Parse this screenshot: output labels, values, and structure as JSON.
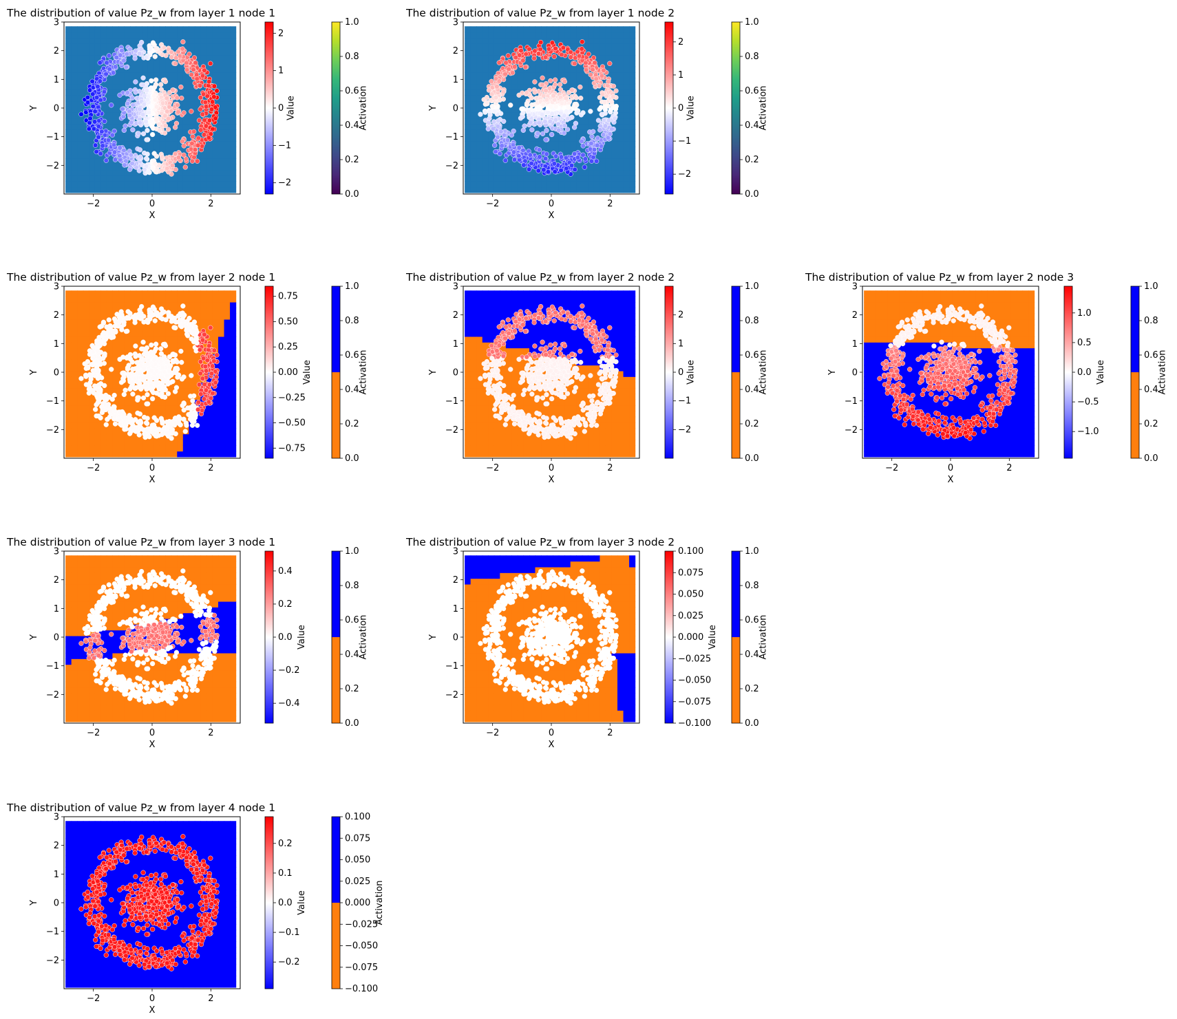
{
  "figure": {
    "background": "#ffffff",
    "colors": {
      "scatter_low": "#0000ff",
      "scatter_mid": "#ffffff",
      "scatter_high": "#ff0000",
      "region_orange": "#ff7f0e",
      "region_blue": "#0000ff",
      "region_steel": "#1f77b4"
    }
  },
  "chart_data": [
    {
      "type": "scatter",
      "title": "The distribution of value Pz_w from layer 1 node 1",
      "xlabel": "X",
      "ylabel": "Y",
      "xlim": [
        -3,
        3
      ],
      "ylim": [
        -3,
        3
      ],
      "xticks": [
        "−2",
        "0",
        "2"
      ],
      "yticks": [
        "−2",
        "−1",
        "0",
        "1",
        "2",
        "3"
      ],
      "background_region": "uniform steel-blue activation grid",
      "scatter_value": "rises left to right",
      "value_colorbar": {
        "label": "Value",
        "range": [
          -2.3,
          2.3
        ],
        "ticks": [
          "−2",
          "−1",
          "0",
          "1",
          "2"
        ]
      },
      "activation_colorbar": {
        "label": "Activation",
        "colormap": "viridis",
        "range": [
          0,
          1
        ],
        "ticks": [
          "0.0",
          "0.2",
          "0.4",
          "0.6",
          "0.8",
          "1.0"
        ]
      }
    },
    {
      "type": "scatter",
      "title": "The distribution of value Pz_w from layer 1 node 2",
      "xlabel": "X",
      "ylabel": "Y",
      "xlim": [
        -3,
        3
      ],
      "ylim": [
        -3,
        3
      ],
      "xticks": [
        "−2",
        "0",
        "2"
      ],
      "yticks": [
        "−2",
        "−1",
        "0",
        "1",
        "2",
        "3"
      ],
      "background_region": "uniform steel-blue activation grid",
      "scatter_value": "rises bottom to top",
      "value_colorbar": {
        "label": "Value",
        "range": [
          -2.6,
          2.6
        ],
        "ticks": [
          "−2",
          "−1",
          "0",
          "1",
          "2"
        ]
      },
      "activation_colorbar": {
        "label": "Activation",
        "colormap": "viridis",
        "range": [
          0,
          1
        ],
        "ticks": [
          "0.0",
          "0.2",
          "0.4",
          "0.6",
          "0.8",
          "1.0"
        ]
      }
    },
    {
      "type": "scatter",
      "title": "The distribution of value Pz_w from layer 2 node 1",
      "xlabel": "X",
      "ylabel": "Y",
      "xlim": [
        -3,
        3
      ],
      "ylim": [
        -3,
        3
      ],
      "xticks": [
        "−2",
        "0",
        "2"
      ],
      "yticks": [
        "−2",
        "−1",
        "0",
        "1",
        "2",
        "3"
      ],
      "background_region": "orange left, blue strip on the right (x > ~2)",
      "scatter_value": "mostly white, red points near the right boundary",
      "value_colorbar": {
        "label": "Value",
        "range": [
          -0.85,
          0.85
        ],
        "ticks": [
          "−0.75",
          "−0.50",
          "−0.25",
          "0.00",
          "0.25",
          "0.50",
          "0.75"
        ]
      },
      "activation_colorbar": {
        "label": "Activation",
        "colormap": "binary orange/blue",
        "range": [
          0,
          1
        ],
        "ticks": [
          "0.0",
          "0.2",
          "0.4",
          "0.6",
          "0.8",
          "1.0"
        ]
      }
    },
    {
      "type": "scatter",
      "title": "The distribution of value Pz_w from layer 2 node 2",
      "xlabel": "X",
      "ylabel": "Y",
      "xlim": [
        -3,
        3
      ],
      "ylim": [
        -3,
        3
      ],
      "xticks": [
        "−2",
        "0",
        "2"
      ],
      "yticks": [
        "−2",
        "−1",
        "0",
        "1",
        "2",
        "3"
      ],
      "background_region": "blue top half, orange bottom half",
      "scatter_value": "red in upper part, white below",
      "value_colorbar": {
        "label": "Value",
        "range": [
          -3,
          3
        ],
        "ticks": [
          "−2",
          "−1",
          "0",
          "1",
          "2"
        ]
      },
      "activation_colorbar": {
        "label": "Activation",
        "colormap": "binary orange/blue",
        "range": [
          0,
          1
        ],
        "ticks": [
          "0.0",
          "0.2",
          "0.4",
          "0.6",
          "0.8",
          "1.0"
        ]
      }
    },
    {
      "type": "scatter",
      "title": "The distribution of value Pz_w from layer 2 node 3",
      "xlabel": "X",
      "ylabel": "Y",
      "xlim": [
        -3,
        3
      ],
      "ylim": [
        -3,
        3
      ],
      "xticks": [
        "−2",
        "0",
        "2"
      ],
      "yticks": [
        "−2",
        "−1",
        "0",
        "1",
        "2",
        "3"
      ],
      "background_region": "orange top band, blue below y ≈ 1",
      "scatter_value": "red in lower part, white above",
      "value_colorbar": {
        "label": "Value",
        "range": [
          -1.45,
          1.45
        ],
        "ticks": [
          "−1.0",
          "−0.5",
          "0.0",
          "0.5",
          "1.0"
        ]
      },
      "activation_colorbar": {
        "label": "Activation",
        "colormap": "binary orange/blue",
        "range": [
          0,
          1
        ],
        "ticks": [
          "0.0",
          "0.2",
          "0.4",
          "0.6",
          "0.8",
          "1.0"
        ]
      }
    },
    {
      "type": "scatter",
      "title": "The distribution of value Pz_w from layer 3 node 1",
      "xlabel": "X",
      "ylabel": "Y",
      "xlim": [
        -3,
        3
      ],
      "ylim": [
        -3,
        3
      ],
      "xticks": [
        "−2",
        "0",
        "2"
      ],
      "yticks": [
        "−2",
        "−1",
        "0",
        "1",
        "2",
        "3"
      ],
      "background_region": "orange with a blue horizontal band around y ≈ 0",
      "scatter_value": "red inside the blue band, white elsewhere",
      "value_colorbar": {
        "label": "Value",
        "range": [
          -0.52,
          0.52
        ],
        "ticks": [
          "−0.4",
          "−0.2",
          "0.0",
          "0.2",
          "0.4"
        ]
      },
      "activation_colorbar": {
        "label": "Activation",
        "colormap": "binary orange/blue",
        "range": [
          0,
          1
        ],
        "ticks": [
          "0.0",
          "0.2",
          "0.4",
          "0.6",
          "0.8",
          "1.0"
        ]
      }
    },
    {
      "type": "scatter",
      "title": "The distribution of value Pz_w from layer 3 node 2",
      "xlabel": "X",
      "ylabel": "Y",
      "xlim": [
        -3,
        3
      ],
      "ylim": [
        -3,
        3
      ],
      "xticks": [
        "−2",
        "0",
        "2"
      ],
      "yticks": [
        "−2",
        "−1",
        "0",
        "1",
        "2",
        "3"
      ],
      "background_region": "orange with blue patches at the top-left and bottom-right corners",
      "scatter_value": "all white",
      "value_colorbar": {
        "label": "Value",
        "range": [
          -0.1,
          0.1
        ],
        "ticks": [
          "−0.100",
          "−0.075",
          "−0.050",
          "−0.025",
          "0.000",
          "0.025",
          "0.050",
          "0.075",
          "0.100"
        ]
      },
      "activation_colorbar": {
        "label": "Activation",
        "colormap": "binary orange/blue",
        "range": [
          0,
          1
        ],
        "ticks": [
          "0.0",
          "0.2",
          "0.4",
          "0.6",
          "0.8",
          "1.0"
        ]
      }
    },
    {
      "type": "scatter",
      "title": "The distribution of value Pz_w from layer 4 node 1",
      "xlabel": "X",
      "ylabel": "Y",
      "xlim": [
        -3,
        3
      ],
      "ylim": [
        -3,
        3
      ],
      "xticks": [
        "−2",
        "0",
        "2"
      ],
      "yticks": [
        "−2",
        "−1",
        "0",
        "1",
        "2",
        "3"
      ],
      "background_region": "uniform blue activation grid",
      "scatter_value": "all red",
      "value_colorbar": {
        "label": "Value",
        "range": [
          -0.29,
          0.29
        ],
        "ticks": [
          "−0.2",
          "−0.1",
          "0.0",
          "0.1",
          "0.2"
        ]
      },
      "activation_colorbar": {
        "label": "Activation",
        "colormap": "binary orange/blue",
        "range": [
          -0.1,
          0.1
        ],
        "ticks": [
          "−0.100",
          "−0.075",
          "−0.050",
          "−0.025",
          "0.000",
          "0.025",
          "0.050",
          "0.075",
          "0.100"
        ]
      }
    }
  ]
}
